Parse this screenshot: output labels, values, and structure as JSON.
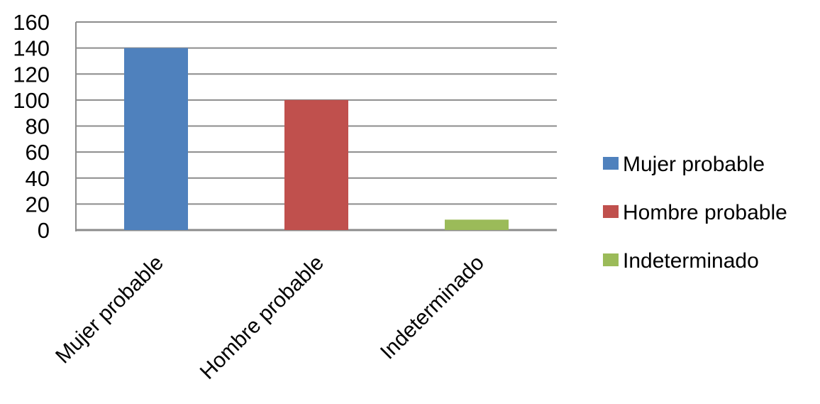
{
  "chart_data": {
    "type": "bar",
    "categories": [
      "Mujer probable",
      "Hombre probable",
      "Indeterminado"
    ],
    "values": [
      140,
      100,
      8
    ],
    "colors": [
      "#4F81BD",
      "#C0504D",
      "#9BBB59"
    ],
    "ylim": [
      0,
      160
    ],
    "yticks": [
      0,
      20,
      40,
      60,
      80,
      100,
      120,
      140,
      160
    ],
    "grid": true,
    "legend": {
      "position": "right",
      "entries": [
        "Mujer probable",
        "Hombre probable",
        "Indeterminado"
      ]
    }
  }
}
